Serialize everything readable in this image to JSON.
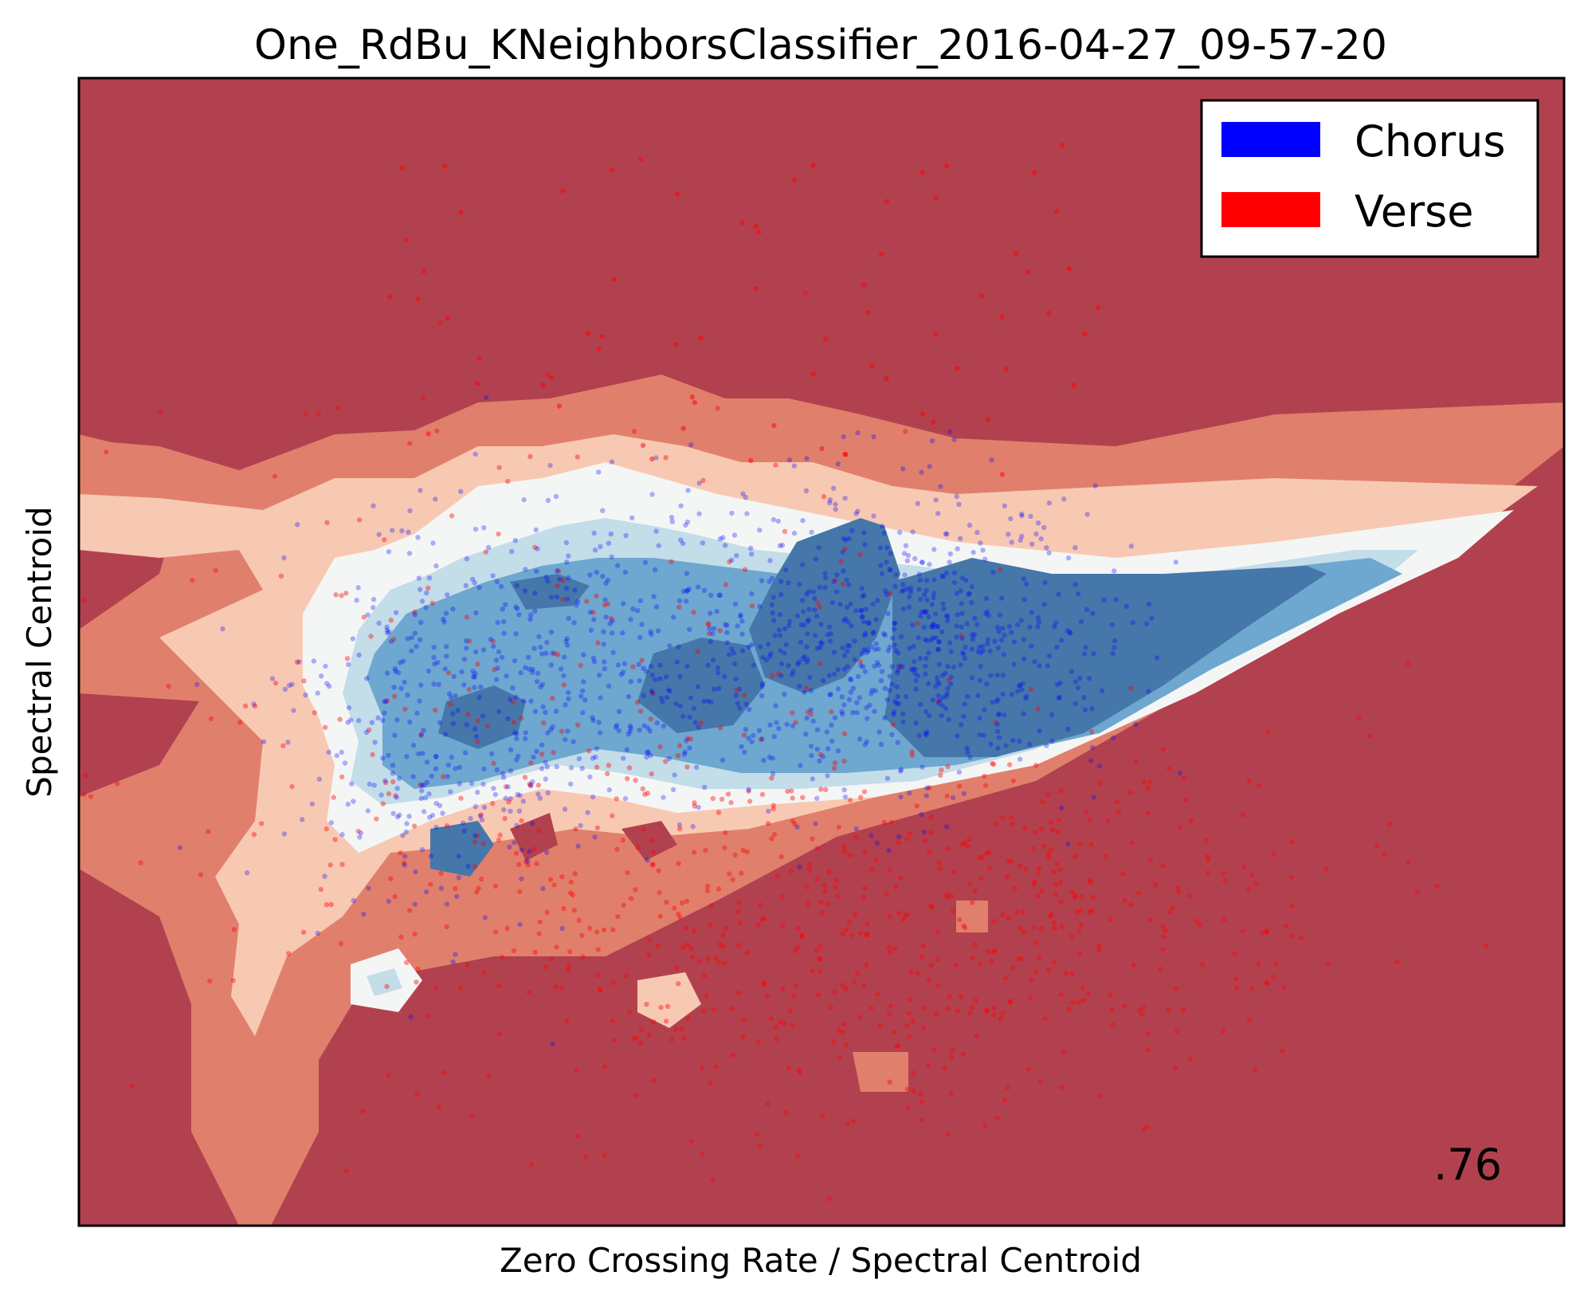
{
  "chart_data": {
    "type": "scatter",
    "title": "One_RdBu_KNeighborsClassifier_2016-04-27_09-57-20",
    "xlabel": "Zero Crossing Rate / Spectral Centroid",
    "ylabel": "Spectral Centroid",
    "score_label": ".76",
    "grid": false,
    "ticks_shown": false,
    "legend_position": "top-right",
    "background": "decision-surface contour (RdBu colormap)",
    "colormap_levels": [
      "#b2414f",
      "#e0806c",
      "#f8c9b2",
      "#f4f6f5",
      "#c3dde9",
      "#6ea7cf",
      "#4677aa"
    ],
    "legend": [
      {
        "label": "Chorus",
        "color": "#0000ff"
      },
      {
        "label": "Verse",
        "color": "#ff0000"
      }
    ],
    "series": [
      {
        "name": "Chorus",
        "color": "#0000ff",
        "alpha": 0.3,
        "n_points_approx": 1300,
        "distribution": "dense diagonal band from left-middle to center-right"
      },
      {
        "name": "Verse",
        "color": "#ff0000",
        "alpha": 0.4,
        "n_points_approx": 900,
        "distribution": "spread below and around the chorus band, densest lower-center"
      }
    ]
  }
}
